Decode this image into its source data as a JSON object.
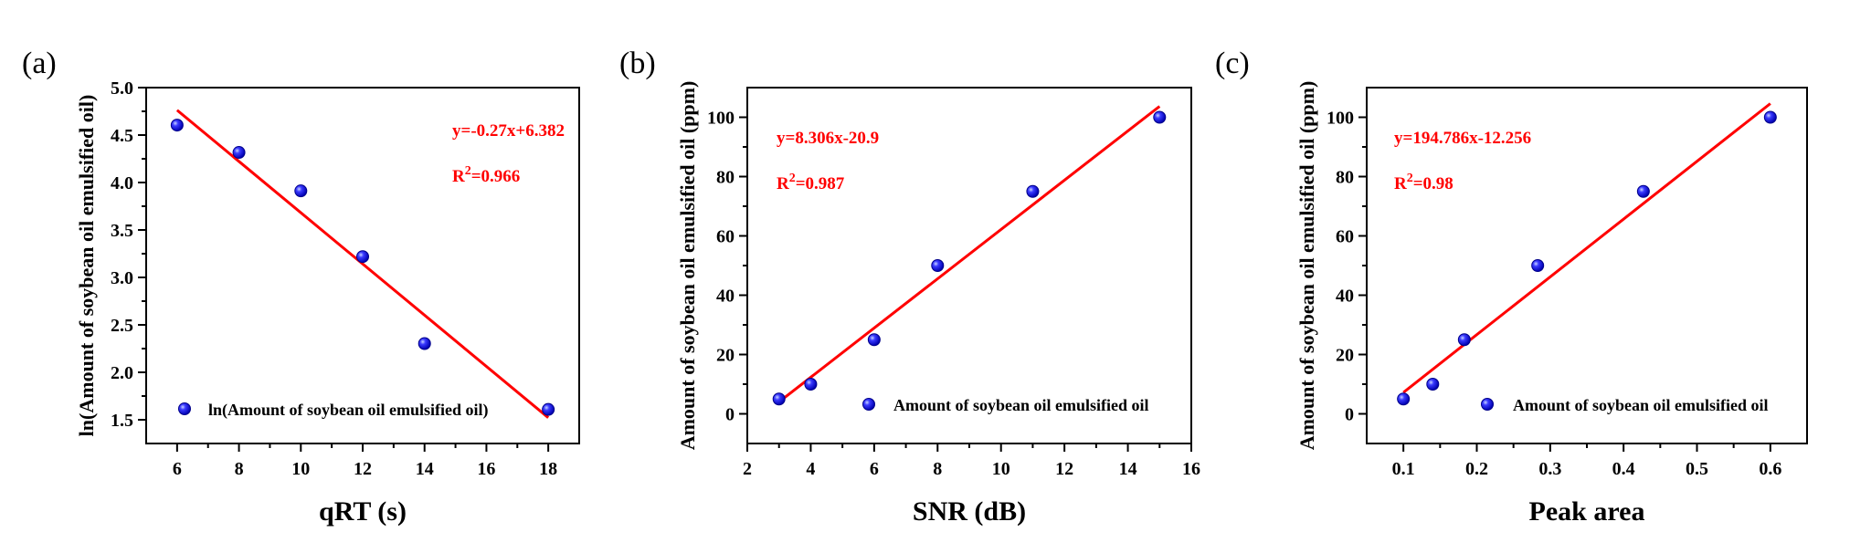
{
  "colors": {
    "point_fill": "#1a1aff",
    "point_highlight": "#9fb4ff",
    "fit_line": "#ff0000",
    "equation_text": "#ff0000"
  },
  "chart_data": [
    {
      "type": "scatter",
      "panel_label": "(a)",
      "xlabel": "qRT (s)",
      "ylabel": "ln(Amount of soybean oil emulsified oil)",
      "xlim": [
        5,
        19
      ],
      "ylim": [
        1.25,
        5.0
      ],
      "xticks": [
        "6",
        "8",
        "10",
        "12",
        "14",
        "16",
        "18"
      ],
      "yticks": [
        "1.5",
        "2.0",
        "2.5",
        "3.0",
        "3.5",
        "4.0",
        "4.5",
        "5.0"
      ],
      "series": [
        {
          "name": "ln(Amount of soybean oil emulsified oil)",
          "x": [
            6,
            8,
            10,
            12,
            14,
            18
          ],
          "y": [
            4.605,
            4.317,
            3.912,
            3.219,
            2.303,
            1.609
          ]
        }
      ],
      "fit": {
        "slope": -0.27,
        "intercept": 6.382,
        "x_range": [
          6,
          18
        ]
      },
      "equation": "y=-0.27x+6.382",
      "r2_prefix": "R",
      "r2_exp": "2",
      "r2_value": "=0.966",
      "legend_position": "bottom"
    },
    {
      "type": "scatter",
      "panel_label": "(b)",
      "xlabel": "SNR (dB)",
      "ylabel": "Amount of soybean oil emulsified oil (ppm)",
      "xlim": [
        2,
        16
      ],
      "ylim": [
        -10,
        110
      ],
      "xticks": [
        "2",
        "4",
        "6",
        "8",
        "10",
        "12",
        "14",
        "16"
      ],
      "yticks": [
        "0",
        "20",
        "40",
        "60",
        "80",
        "100"
      ],
      "series": [
        {
          "name": "Amount of soybean oil emulsified oil",
          "x": [
            3,
            4,
            6,
            8,
            11,
            15
          ],
          "y": [
            5,
            10,
            25,
            50,
            75,
            100
          ]
        }
      ],
      "fit": {
        "slope": 8.306,
        "intercept": -20.9,
        "x_range": [
          3,
          15
        ]
      },
      "equation": "y=8.306x-20.9",
      "r2_prefix": "R",
      "r2_exp": "2",
      "r2_value": "=0.987",
      "legend_position": "bottom-right"
    },
    {
      "type": "scatter",
      "panel_label": "(c)",
      "xlabel": "Peak area",
      "ylabel": "Amount of soybean oil emulsified oil (ppm)",
      "xlim": [
        0.05,
        0.65
      ],
      "ylim": [
        -10,
        110
      ],
      "xticks": [
        "0.1",
        "0.2",
        "0.3",
        "0.4",
        "0.5",
        "0.6"
      ],
      "yticks": [
        "0",
        "20",
        "40",
        "60",
        "80",
        "100"
      ],
      "series": [
        {
          "name": "Amount of soybean oil emulsified oil",
          "x": [
            0.1,
            0.14,
            0.183,
            0.283,
            0.427,
            0.6
          ],
          "y": [
            5,
            10,
            25,
            50,
            75,
            100
          ]
        }
      ],
      "fit": {
        "slope": 194.786,
        "intercept": -12.256,
        "x_range": [
          0.1,
          0.6
        ]
      },
      "equation": "y=194.786x-12.256",
      "r2_prefix": "R",
      "r2_exp": "2",
      "r2_value": "=0.98",
      "legend_position": "bottom-right"
    }
  ]
}
